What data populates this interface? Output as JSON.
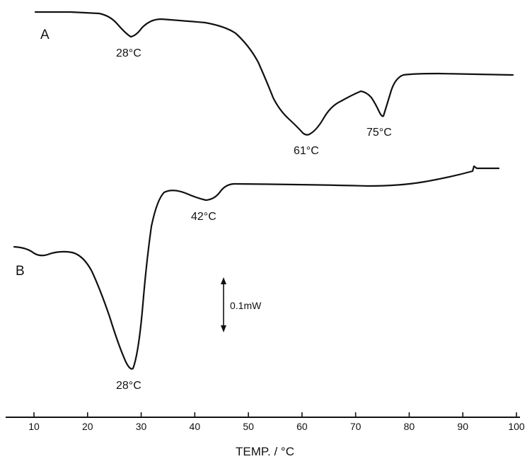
{
  "chart_data": {
    "type": "line",
    "xlabel": "TEMP.  / °C",
    "xlim": [
      6,
      100
    ],
    "x_ticks": [
      "10",
      "20",
      "30",
      "40",
      "50",
      "60",
      "70",
      "80",
      "90",
      "100"
    ],
    "grid": false,
    "scale_bar": {
      "label": "0.1mW",
      "value": 0.1,
      "unit": "mW"
    },
    "series": [
      {
        "name": "A",
        "peaks": [
          {
            "x": 28,
            "label": "28°C"
          },
          {
            "x": 61,
            "label": "61°C"
          },
          {
            "x": 75,
            "label": "75°C"
          }
        ]
      },
      {
        "name": "B",
        "peaks": [
          {
            "x": 28,
            "label": "28°C"
          },
          {
            "x": 42,
            "label": "42°C"
          }
        ]
      }
    ]
  }
}
